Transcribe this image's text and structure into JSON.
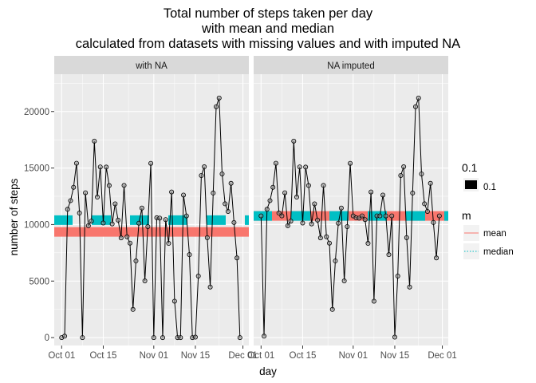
{
  "chart_data": {
    "type": "line",
    "title_lines": [
      "Total number of steps taken per day",
      "with mean and median",
      "calculated from datasets with missing values and with imputed NA"
    ],
    "xlabel": "day",
    "ylabel": "number of steps",
    "x_start": "2012-10-01",
    "x_ticks": [
      {
        "label": "Oct 01",
        "day": 0
      },
      {
        "label": "Oct 15",
        "day": 14
      },
      {
        "label": "Nov 01",
        "day": 31
      },
      {
        "label": "Nov 15",
        "day": 45
      },
      {
        "label": "Dec 01",
        "day": 61
      }
    ],
    "y_ticks": [
      0,
      5000,
      10000,
      15000,
      20000
    ],
    "ylim": [
      -700,
      23300
    ],
    "xlim_days": [
      -2.5,
      63
    ],
    "grid": true,
    "colors": {
      "mean": "#F8766D",
      "median": "#00BFC4",
      "panel_bg": "#EBEBEB",
      "strip_bg": "#D9D9D9",
      "line": "#000000",
      "point_fill": "#999999"
    },
    "legend": {
      "placement": "right",
      "size_title": "0.1",
      "size_label": "0.1",
      "color_title": "m",
      "entries": [
        {
          "label": "mean",
          "linetype": "solid",
          "color": "#F8766D"
        },
        {
          "label": "median",
          "linetype": "dotted",
          "color": "#00BFC4"
        }
      ]
    },
    "panels": [
      {
        "label": "with NA",
        "mean": 9354,
        "median": 10395,
        "series": [
          {
            "day": 0,
            "steps": 0
          },
          {
            "day": 1,
            "steps": 126
          },
          {
            "day": 2,
            "steps": 11352
          },
          {
            "day": 3,
            "steps": 12116
          },
          {
            "day": 4,
            "steps": 13294
          },
          {
            "day": 5,
            "steps": 15420
          },
          {
            "day": 6,
            "steps": 11015
          },
          {
            "day": 7,
            "steps": 0
          },
          {
            "day": 8,
            "steps": 12811
          },
          {
            "day": 9,
            "steps": 9900
          },
          {
            "day": 10,
            "steps": 10304
          },
          {
            "day": 11,
            "steps": 17382
          },
          {
            "day": 12,
            "steps": 12426
          },
          {
            "day": 13,
            "steps": 15098
          },
          {
            "day": 14,
            "steps": 10139
          },
          {
            "day": 15,
            "steps": 15084
          },
          {
            "day": 16,
            "steps": 13452
          },
          {
            "day": 17,
            "steps": 10056
          },
          {
            "day": 18,
            "steps": 11829
          },
          {
            "day": 19,
            "steps": 10395
          },
          {
            "day": 20,
            "steps": 8821
          },
          {
            "day": 21,
            "steps": 13460
          },
          {
            "day": 22,
            "steps": 8918
          },
          {
            "day": 23,
            "steps": 8355
          },
          {
            "day": 24,
            "steps": 2492
          },
          {
            "day": 25,
            "steps": 6778
          },
          {
            "day": 26,
            "steps": 10119
          },
          {
            "day": 27,
            "steps": 11458
          },
          {
            "day": 28,
            "steps": 5018
          },
          {
            "day": 29,
            "steps": 9819
          },
          {
            "day": 30,
            "steps": 15414
          },
          {
            "day": 31,
            "steps": 0
          },
          {
            "day": 32,
            "steps": 10600
          },
          {
            "day": 33,
            "steps": 10571
          },
          {
            "day": 34,
            "steps": 0
          },
          {
            "day": 35,
            "steps": 10439
          },
          {
            "day": 36,
            "steps": 8334
          },
          {
            "day": 37,
            "steps": 12883
          },
          {
            "day": 38,
            "steps": 3219
          },
          {
            "day": 39,
            "steps": 0
          },
          {
            "day": 40,
            "steps": 0
          },
          {
            "day": 41,
            "steps": 12608
          },
          {
            "day": 42,
            "steps": 10765
          },
          {
            "day": 43,
            "steps": 7336
          },
          {
            "day": 44,
            "steps": 0
          },
          {
            "day": 45,
            "steps": 41
          },
          {
            "day": 46,
            "steps": 5441
          },
          {
            "day": 47,
            "steps": 14339
          },
          {
            "day": 48,
            "steps": 15110
          },
          {
            "day": 49,
            "steps": 8841
          },
          {
            "day": 50,
            "steps": 4472
          },
          {
            "day": 51,
            "steps": 12787
          },
          {
            "day": 52,
            "steps": 20427
          },
          {
            "day": 53,
            "steps": 21194
          },
          {
            "day": 54,
            "steps": 14478
          },
          {
            "day": 55,
            "steps": 11834
          },
          {
            "day": 56,
            "steps": 11162
          },
          {
            "day": 57,
            "steps": 13646
          },
          {
            "day": 58,
            "steps": 10183
          },
          {
            "day": 59,
            "steps": 7047
          },
          {
            "day": 60,
            "steps": 0
          }
        ]
      },
      {
        "label": "NA imputed",
        "mean": 10766,
        "median": 10766,
        "series": [
          {
            "day": 0,
            "steps": 10766
          },
          {
            "day": 1,
            "steps": 126
          },
          {
            "day": 2,
            "steps": 11352
          },
          {
            "day": 3,
            "steps": 12116
          },
          {
            "day": 4,
            "steps": 13294
          },
          {
            "day": 5,
            "steps": 15420
          },
          {
            "day": 6,
            "steps": 11015
          },
          {
            "day": 7,
            "steps": 10766
          },
          {
            "day": 8,
            "steps": 12811
          },
          {
            "day": 9,
            "steps": 9900
          },
          {
            "day": 10,
            "steps": 10304
          },
          {
            "day": 11,
            "steps": 17382
          },
          {
            "day": 12,
            "steps": 12426
          },
          {
            "day": 13,
            "steps": 15098
          },
          {
            "day": 14,
            "steps": 10139
          },
          {
            "day": 15,
            "steps": 15084
          },
          {
            "day": 16,
            "steps": 13452
          },
          {
            "day": 17,
            "steps": 10056
          },
          {
            "day": 18,
            "steps": 11829
          },
          {
            "day": 19,
            "steps": 10395
          },
          {
            "day": 20,
            "steps": 8821
          },
          {
            "day": 21,
            "steps": 13460
          },
          {
            "day": 22,
            "steps": 8918
          },
          {
            "day": 23,
            "steps": 8355
          },
          {
            "day": 24,
            "steps": 2492
          },
          {
            "day": 25,
            "steps": 6778
          },
          {
            "day": 26,
            "steps": 10119
          },
          {
            "day": 27,
            "steps": 11458
          },
          {
            "day": 28,
            "steps": 5018
          },
          {
            "day": 29,
            "steps": 9819
          },
          {
            "day": 30,
            "steps": 15414
          },
          {
            "day": 31,
            "steps": 10766
          },
          {
            "day": 32,
            "steps": 10600
          },
          {
            "day": 33,
            "steps": 10571
          },
          {
            "day": 34,
            "steps": 10766
          },
          {
            "day": 35,
            "steps": 10439
          },
          {
            "day": 36,
            "steps": 8334
          },
          {
            "day": 37,
            "steps": 12883
          },
          {
            "day": 38,
            "steps": 3219
          },
          {
            "day": 39,
            "steps": 10766
          },
          {
            "day": 40,
            "steps": 10766
          },
          {
            "day": 41,
            "steps": 12608
          },
          {
            "day": 42,
            "steps": 10765
          },
          {
            "day": 43,
            "steps": 7336
          },
          {
            "day": 44,
            "steps": 10766
          },
          {
            "day": 45,
            "steps": 41
          },
          {
            "day": 46,
            "steps": 5441
          },
          {
            "day": 47,
            "steps": 14339
          },
          {
            "day": 48,
            "steps": 15110
          },
          {
            "day": 49,
            "steps": 8841
          },
          {
            "day": 50,
            "steps": 4472
          },
          {
            "day": 51,
            "steps": 12787
          },
          {
            "day": 52,
            "steps": 20427
          },
          {
            "day": 53,
            "steps": 21194
          },
          {
            "day": 54,
            "steps": 14478
          },
          {
            "day": 55,
            "steps": 11834
          },
          {
            "day": 56,
            "steps": 11162
          },
          {
            "day": 57,
            "steps": 13646
          },
          {
            "day": 58,
            "steps": 10183
          },
          {
            "day": 59,
            "steps": 7047
          },
          {
            "day": 60,
            "steps": 10766
          }
        ]
      }
    ]
  }
}
